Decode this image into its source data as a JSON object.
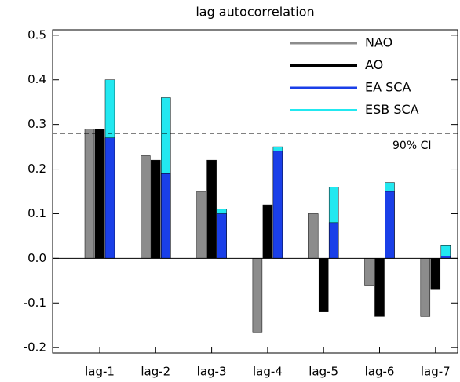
{
  "chart_data": {
    "type": "bar",
    "title": "lag autocorrelation",
    "categories": [
      "lag-1",
      "lag-2",
      "lag-3",
      "lag-4",
      "lag-5",
      "lag-6",
      "lag-7"
    ],
    "series": [
      {
        "name": "NAO",
        "color": "#8c8c8c",
        "values": [
          0.29,
          0.23,
          0.15,
          -0.165,
          0.1,
          -0.06,
          -0.13
        ]
      },
      {
        "name": "AO",
        "color": "#000000",
        "values": [
          0.29,
          0.22,
          0.22,
          0.12,
          -0.12,
          -0.13,
          -0.07
        ]
      },
      {
        "name": "EA SCA",
        "color": "#1a3fe8",
        "values": [
          0.27,
          0.19,
          0.1,
          0.24,
          0.08,
          0.15,
          0.005
        ]
      },
      {
        "name": "ESB SCA",
        "color": "#22e8f0",
        "values": [
          0.4,
          0.36,
          0.11,
          0.25,
          0.16,
          0.17,
          0.03
        ]
      }
    ],
    "ylim": [
      -0.212,
      0.512
    ],
    "yticks": [
      {
        "value": -0.2,
        "label": "-0.2"
      },
      {
        "value": -0.1,
        "label": "-0.1"
      },
      {
        "value": 0,
        "label": "0.0"
      },
      0.1,
      0.2,
      0.3,
      0.4,
      0.5
    ],
    "ci_line": {
      "value": 0.28,
      "label": "90% CI"
    },
    "legend": "upper right"
  }
}
